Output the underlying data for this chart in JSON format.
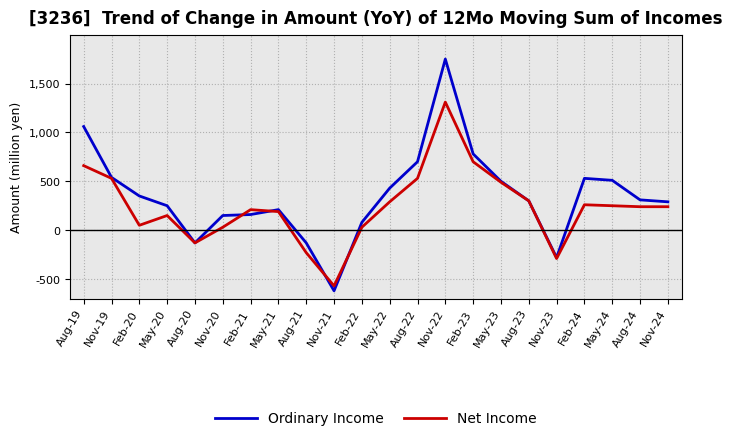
{
  "title": "[3236]  Trend of Change in Amount (YoY) of 12Mo Moving Sum of Incomes",
  "ylabel": "Amount (million yen)",
  "x_labels": [
    "Aug-19",
    "Nov-19",
    "Feb-20",
    "May-20",
    "Aug-20",
    "Nov-20",
    "Feb-21",
    "May-21",
    "Aug-21",
    "Nov-21",
    "Feb-22",
    "May-22",
    "Aug-22",
    "Nov-22",
    "Feb-23",
    "May-23",
    "Aug-23",
    "Nov-23",
    "Feb-24",
    "May-24",
    "Aug-24",
    "Nov-24"
  ],
  "ordinary_income": [
    1060,
    540,
    350,
    250,
    -130,
    150,
    160,
    210,
    -130,
    -620,
    80,
    430,
    700,
    1750,
    780,
    500,
    300,
    -280,
    530,
    510,
    310,
    290
  ],
  "net_income": [
    660,
    530,
    50,
    150,
    -130,
    30,
    210,
    190,
    -230,
    -570,
    30,
    290,
    530,
    1310,
    700,
    490,
    300,
    -290,
    260,
    250,
    240,
    240
  ],
  "ordinary_income_color": "#0000cc",
  "net_income_color": "#cc0000",
  "ylim": [
    -700,
    2000
  ],
  "yticks": [
    -500,
    0,
    500,
    1000,
    1500
  ],
  "background_color": "#ffffff",
  "plot_bg_color": "#e8e8e8",
  "grid_color": "#b0b0b0",
  "linewidth": 2.0,
  "legend_ordinary": "Ordinary Income",
  "legend_net": "Net Income",
  "title_fontsize": 12,
  "axis_fontsize": 9,
  "tick_fontsize": 8
}
